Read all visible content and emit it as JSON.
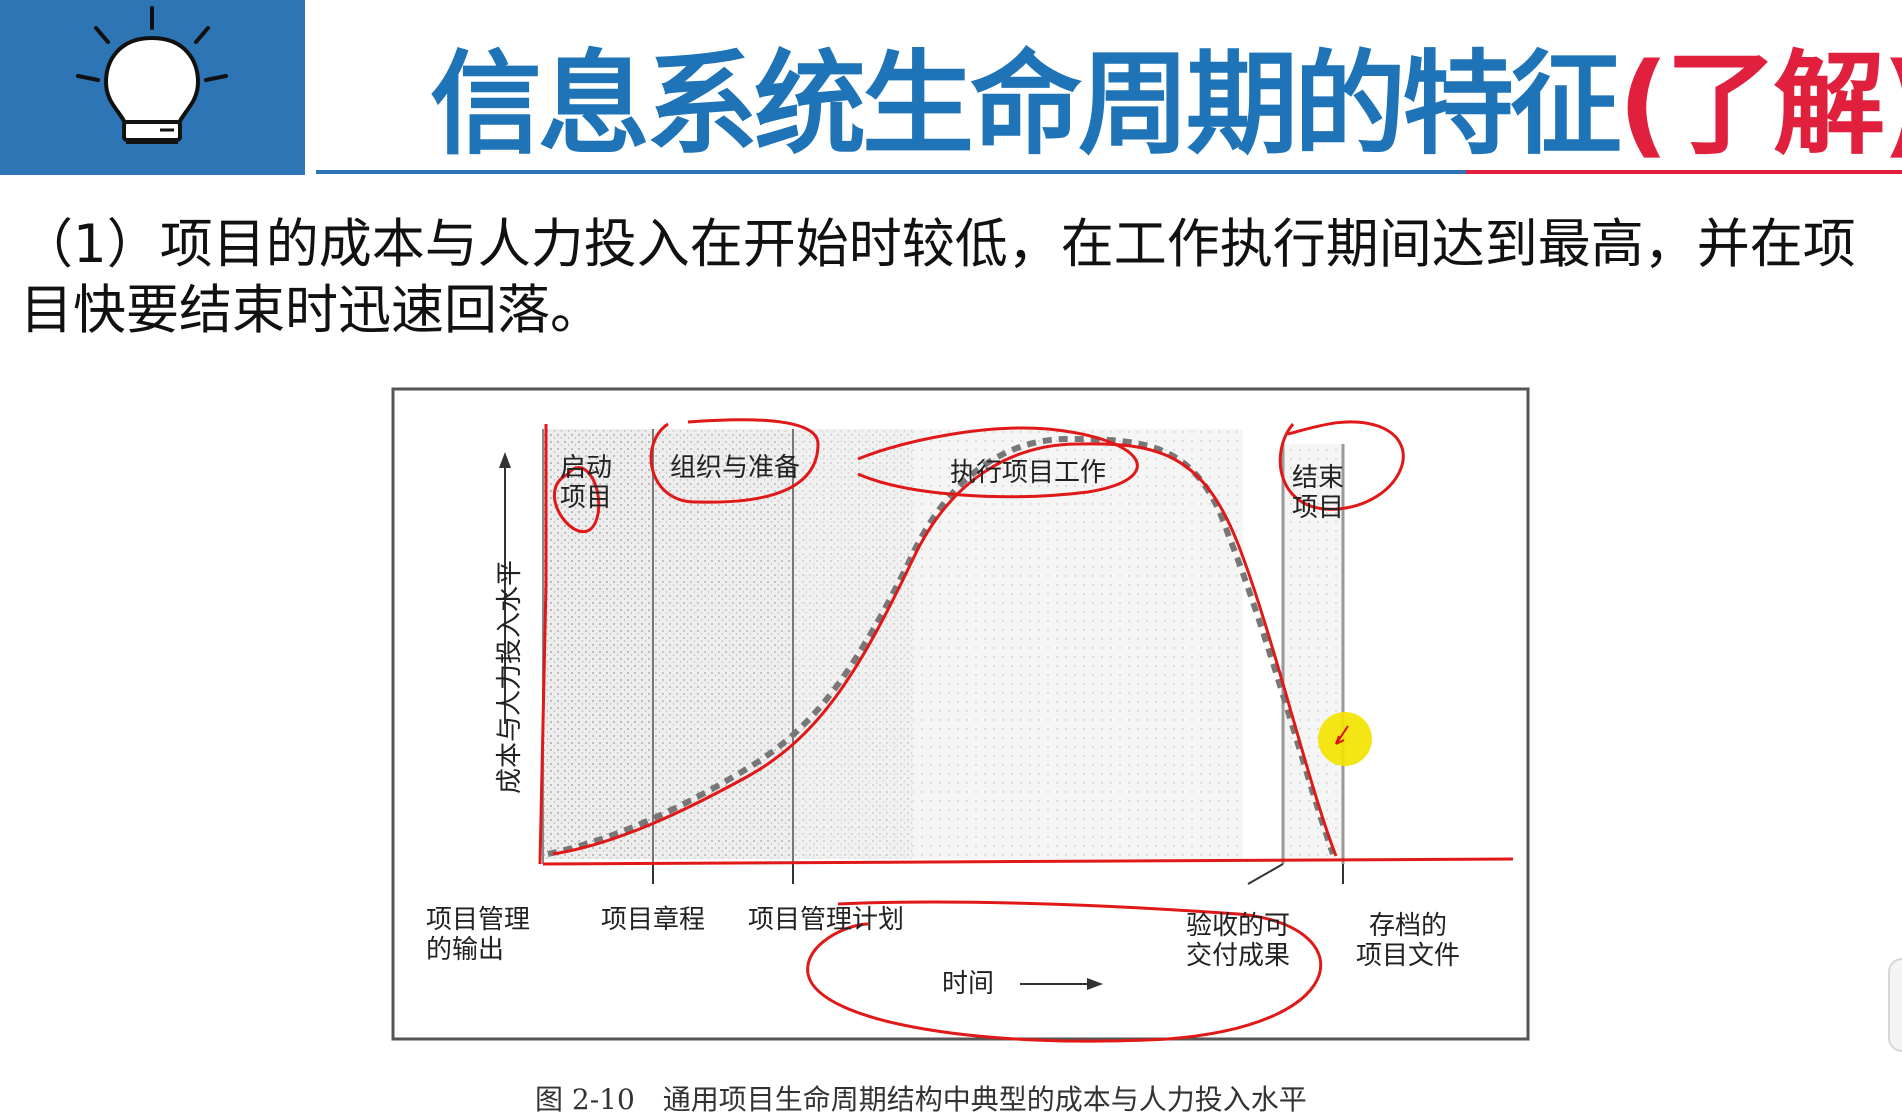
{
  "header": {
    "title_main": "信息系统生命周期的特征",
    "title_accent": "(了解)",
    "colors": {
      "title": "#1f73b7",
      "accent": "#e0203c",
      "logo_bg": "#2e75b6"
    },
    "logo_icon": "lightbulb-icon"
  },
  "body": {
    "paragraph": "（1）项目的成本与人力投入在开始时较低，在工作执行期间达到最高，并在项目快要结束时迅速回落。"
  },
  "figure": {
    "y_axis_label": "成本与人力投入水平",
    "phases": {
      "start_line1": "启动",
      "start_line2": "项目",
      "organize": "组织与准备",
      "execute": "执行项目工作",
      "close_line1": "结束",
      "close_line2": "项目"
    },
    "x_labels": {
      "pm_output_line1": "项目管理",
      "pm_output_line2": "的输出",
      "charter": "项目章程",
      "plan": "项目管理计划",
      "deliverable_line1": "验收的可",
      "deliverable_line2": "交付成果",
      "archive_line1": "存档的",
      "archive_line2": "项目文件"
    },
    "x_axis_label": "时间",
    "caption": "图 2-10　通用项目生命周期结构中典型的成本与人力投入水平"
  }
}
